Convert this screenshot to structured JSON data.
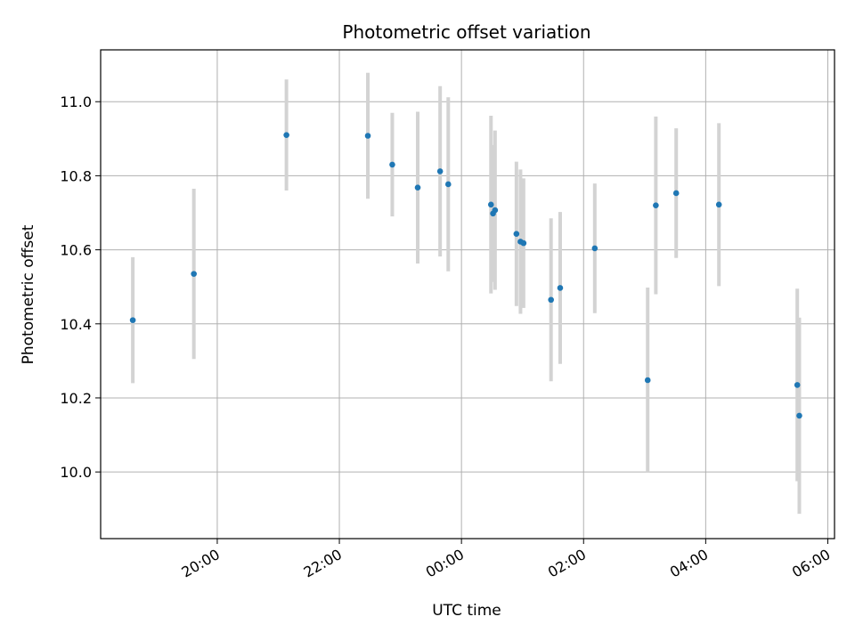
{
  "chart_data": {
    "type": "scatter",
    "title": "Photometric offset variation",
    "xlabel": "UTC time",
    "ylabel": "Photometric offset",
    "x_tick_labels": [
      "20:00",
      "22:00",
      "00:00",
      "02:00",
      "04:00",
      "06:00"
    ],
    "x_tick_hours": [
      20,
      22,
      24,
      26,
      28,
      30
    ],
    "xlim_hours": [
      18.09,
      30.11
    ],
    "ylim": [
      9.82,
      11.14
    ],
    "y_ticks": [
      10.0,
      10.2,
      10.4,
      10.6,
      10.8,
      11.0
    ],
    "y_tick_labels": [
      "10.0",
      "10.2",
      "10.4",
      "10.6",
      "10.8",
      "11.0"
    ],
    "grid": true,
    "marker_color": "#1f77b4",
    "errorbar_color": "#d3d3d3",
    "points": [
      {
        "time": "18:37",
        "y": 10.41,
        "yerr": 0.17
      },
      {
        "time": "19:37",
        "y": 10.535,
        "yerr": 0.23
      },
      {
        "time": "21:08",
        "y": 10.91,
        "yerr": 0.15
      },
      {
        "time": "22:28",
        "y": 10.908,
        "yerr": 0.17
      },
      {
        "time": "22:52",
        "y": 10.83,
        "yerr": 0.14
      },
      {
        "time": "23:17",
        "y": 10.768,
        "yerr": 0.205
      },
      {
        "time": "23:39",
        "y": 10.812,
        "yerr": 0.23
      },
      {
        "time": "23:47",
        "y": 10.777,
        "yerr": 0.235
      },
      {
        "time": "00:29",
        "y": 10.722,
        "yerr": 0.24
      },
      {
        "time": "00:31",
        "y": 10.698,
        "yerr": 0.185
      },
      {
        "time": "00:33",
        "y": 10.707,
        "yerr": 0.215
      },
      {
        "time": "00:54",
        "y": 10.643,
        "yerr": 0.195
      },
      {
        "time": "00:58",
        "y": 10.622,
        "yerr": 0.195
      },
      {
        "time": "01:01",
        "y": 10.618,
        "yerr": 0.175
      },
      {
        "time": "01:28",
        "y": 10.465,
        "yerr": 0.22
      },
      {
        "time": "01:37",
        "y": 10.497,
        "yerr": 0.205
      },
      {
        "time": "02:11",
        "y": 10.604,
        "yerr": 0.175
      },
      {
        "time": "03:03",
        "y": 10.248,
        "yerr": 0.25
      },
      {
        "time": "03:11",
        "y": 10.72,
        "yerr": 0.24
      },
      {
        "time": "03:31",
        "y": 10.753,
        "yerr": 0.175
      },
      {
        "time": "04:13",
        "y": 10.722,
        "yerr": 0.22
      },
      {
        "time": "05:30",
        "y": 10.235,
        "yerr": 0.26
      },
      {
        "time": "05:32",
        "y": 10.152,
        "yerr": 0.265
      }
    ]
  }
}
